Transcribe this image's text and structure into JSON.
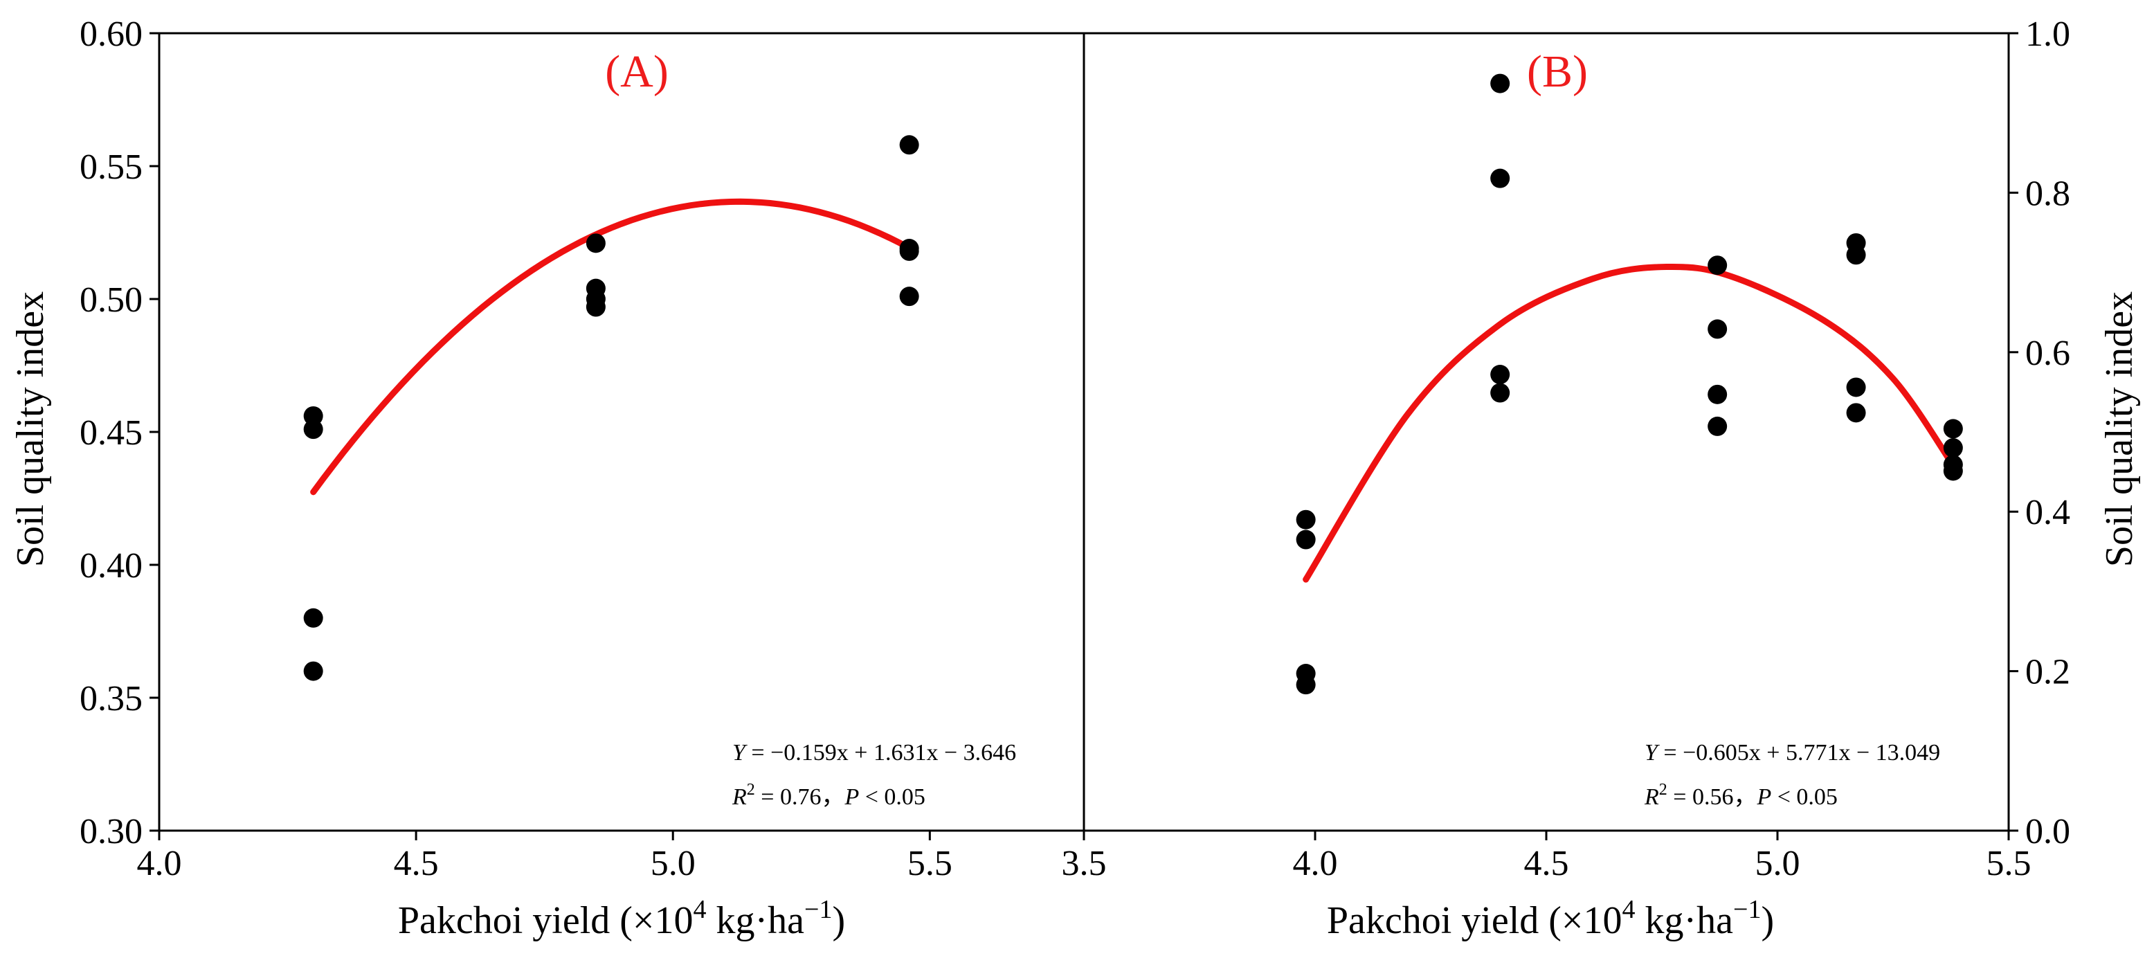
{
  "chart_data": [
    {
      "type": "scatter",
      "panel_label": "(A)",
      "xlabel": {
        "text": "Pakchoi yield (×10",
        "sup": "4",
        "unit": " kg·ha",
        "unit_sup": "−1",
        "close": ")"
      },
      "ylabel": "Soil quality index",
      "xlim": [
        4.0,
        5.8
      ],
      "ylim": [
        0.3,
        0.6
      ],
      "x_ticks": [
        "4.0",
        "4.5",
        "5.0",
        "5.5"
      ],
      "y_ticks": [
        "0.30",
        "0.35",
        "0.40",
        "0.45",
        "0.50",
        "0.55",
        "0.60"
      ],
      "y_axis_side": "left",
      "points": [
        {
          "x": 4.3,
          "y": 0.456
        },
        {
          "x": 4.3,
          "y": 0.451
        },
        {
          "x": 4.3,
          "y": 0.38
        },
        {
          "x": 4.3,
          "y": 0.36
        },
        {
          "x": 4.85,
          "y": 0.521
        },
        {
          "x": 4.85,
          "y": 0.504
        },
        {
          "x": 4.85,
          "y": 0.5
        },
        {
          "x": 4.85,
          "y": 0.497
        },
        {
          "x": 5.46,
          "y": 0.558
        },
        {
          "x": 5.46,
          "y": 0.519
        },
        {
          "x": 5.46,
          "y": 0.518
        },
        {
          "x": 5.46,
          "y": 0.501
        }
      ],
      "fit_curve": {
        "a": -0.159,
        "b": 1.631,
        "c": -3.646,
        "x_range": [
          4.3,
          5.46
        ]
      },
      "equation": {
        "lhs": "Y",
        "rhs": " = −0.159x + 1.631x − 3.646",
        "r2_label": "R",
        "r2_sup": "2",
        "r2_value": " = 0.76，",
        "p_label": "P",
        "p_value": " < 0.05"
      }
    },
    {
      "type": "scatter",
      "panel_label": "(B)",
      "xlabel": {
        "text": "Pakchoi yield (×10",
        "sup": "4",
        "unit": " kg·ha",
        "unit_sup": "−1",
        "close": ")"
      },
      "ylabel": "Soil quality index",
      "xlim": [
        3.5,
        5.5
      ],
      "ylim": [
        0.0,
        1.0
      ],
      "x_ticks": [
        "3.5",
        "4.0",
        "4.5",
        "5.0",
        "5.5"
      ],
      "y_ticks": [
        "0.0",
        "0.2",
        "0.4",
        "0.6",
        "0.8",
        "1.0"
      ],
      "y_axis_side": "right",
      "points": [
        {
          "x": 3.98,
          "y": 0.39
        },
        {
          "x": 3.98,
          "y": 0.365
        },
        {
          "x": 3.98,
          "y": 0.197
        },
        {
          "x": 3.98,
          "y": 0.183
        },
        {
          "x": 4.4,
          "y": 0.937
        },
        {
          "x": 4.4,
          "y": 0.818
        },
        {
          "x": 4.4,
          "y": 0.572
        },
        {
          "x": 4.4,
          "y": 0.549
        },
        {
          "x": 4.87,
          "y": 0.709
        },
        {
          "x": 4.87,
          "y": 0.629
        },
        {
          "x": 4.87,
          "y": 0.547
        },
        {
          "x": 4.87,
          "y": 0.507
        },
        {
          "x": 5.17,
          "y": 0.737
        },
        {
          "x": 5.17,
          "y": 0.722
        },
        {
          "x": 5.17,
          "y": 0.556
        },
        {
          "x": 5.17,
          "y": 0.524
        },
        {
          "x": 5.38,
          "y": 0.504
        },
        {
          "x": 5.38,
          "y": 0.48
        },
        {
          "x": 5.38,
          "y": 0.459
        },
        {
          "x": 5.38,
          "y": 0.451
        }
      ],
      "fit_curve": {
        "a": -0.605,
        "b": 5.771,
        "c": -13.049,
        "x_range": [
          3.98,
          5.38
        ],
        "curve_points": [
          [
            3.98,
            0.315
          ],
          [
            4.2,
            0.522
          ],
          [
            4.4,
            0.635
          ],
          [
            4.6,
            0.692
          ],
          [
            4.76,
            0.707
          ],
          [
            4.9,
            0.695
          ],
          [
            5.1,
            0.64
          ],
          [
            5.25,
            0.567
          ],
          [
            5.38,
            0.458
          ]
        ]
      },
      "equation": {
        "lhs": "Y",
        "rhs": " = −0.605x + 5.771x − 13.049",
        "r2_label": "R",
        "r2_sup": "2",
        "r2_value": " = 0.56，",
        "p_label": "P",
        "p_value": " < 0.05"
      }
    }
  ]
}
